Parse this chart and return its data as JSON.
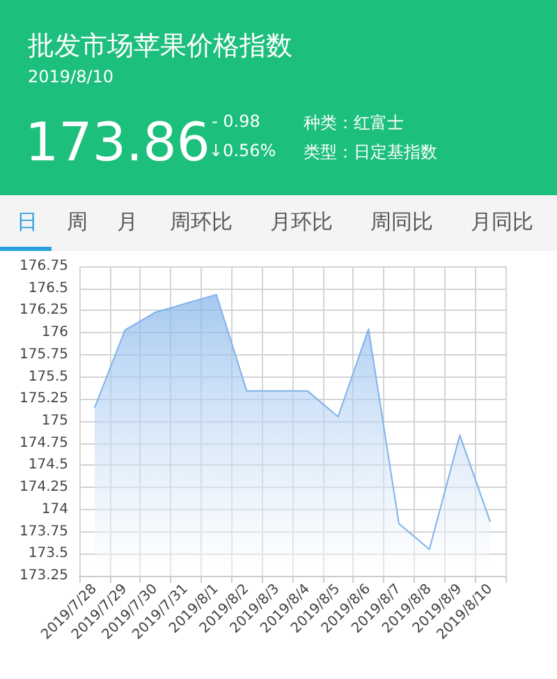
{
  "chart_data": {
    "type": "area",
    "title": "批发市场苹果价格指数",
    "subtitle": "2019/8/10",
    "annotations": [
      "173.86",
      "- 0.98",
      "↓0.56%",
      "种类：红富士",
      "类型：日定基指数",
      "日",
      "周",
      "月",
      "周环比",
      "月环比",
      "周同比",
      "月同比"
    ],
    "categories": [
      "2019/7/28",
      "2019/7/29",
      "2019/7/30",
      "2019/7/31",
      "2019/8/1",
      "2019/8/2",
      "2019/8/3",
      "2019/8/4",
      "2019/8/5",
      "2019/8/6",
      "2019/8/7",
      "2019/8/8",
      "2019/8/9",
      "2019/8/10"
    ],
    "series": [
      {
        "color": "#7fb2ea",
        "values": [
          175.15,
          176.03,
          176.23,
          176.33,
          176.43,
          175.34,
          175.34,
          175.34,
          175.05,
          176.04,
          173.84,
          173.55,
          174.84,
          173.86
        ]
      }
    ],
    "ylim": [
      173.25,
      176.75
    ],
    "yticks": [
      173.25,
      173.5,
      173.75,
      174,
      174.25,
      174.5,
      174.75,
      175,
      175.25,
      175.5,
      175.75,
      176,
      176.25,
      176.5,
      176.75
    ],
    "grid": true
  }
}
